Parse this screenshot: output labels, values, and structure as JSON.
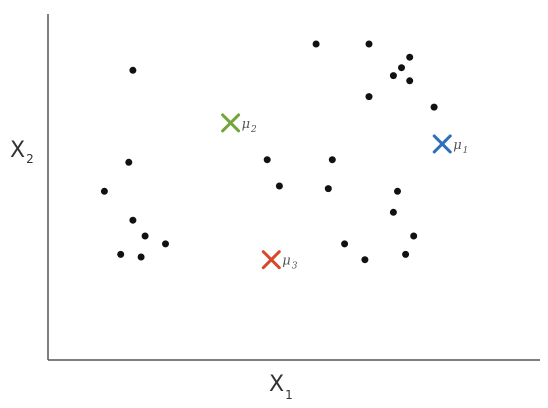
{
  "chart_data": {
    "type": "scatter",
    "title": "",
    "xlabel": {
      "base": "X",
      "sub": "1"
    },
    "ylabel": {
      "base": "X",
      "sub": "2"
    },
    "xlim": [
      0,
      100
    ],
    "ylim": [
      0,
      100
    ],
    "grid": false,
    "points": [
      {
        "x": 13,
        "y": 90
      },
      {
        "x": 6,
        "y": 44
      },
      {
        "x": 12,
        "y": 55
      },
      {
        "x": 13,
        "y": 33
      },
      {
        "x": 16,
        "y": 27
      },
      {
        "x": 10,
        "y": 20
      },
      {
        "x": 15,
        "y": 19
      },
      {
        "x": 21,
        "y": 24
      },
      {
        "x": 46,
        "y": 56
      },
      {
        "x": 49,
        "y": 46
      },
      {
        "x": 58,
        "y": 100
      },
      {
        "x": 62,
        "y": 56
      },
      {
        "x": 61,
        "y": 45
      },
      {
        "x": 65,
        "y": 24
      },
      {
        "x": 71,
        "y": 100
      },
      {
        "x": 71,
        "y": 80
      },
      {
        "x": 77,
        "y": 88
      },
      {
        "x": 79,
        "y": 91
      },
      {
        "x": 81,
        "y": 95
      },
      {
        "x": 81,
        "y": 86
      },
      {
        "x": 87,
        "y": 76
      },
      {
        "x": 78,
        "y": 44
      },
      {
        "x": 77,
        "y": 36
      },
      {
        "x": 82,
        "y": 27
      },
      {
        "x": 80,
        "y": 20
      },
      {
        "x": 70,
        "y": 18
      }
    ],
    "centroids": [
      {
        "label": "μ",
        "sub": "1",
        "color": "#2c6fbd",
        "x": 89,
        "y": 62
      },
      {
        "label": "μ",
        "sub": "2",
        "color": "#74a53a",
        "x": 37,
        "y": 70
      },
      {
        "label": "μ",
        "sub": "3",
        "color": "#d9472b",
        "x": 47,
        "y": 18
      }
    ]
  }
}
